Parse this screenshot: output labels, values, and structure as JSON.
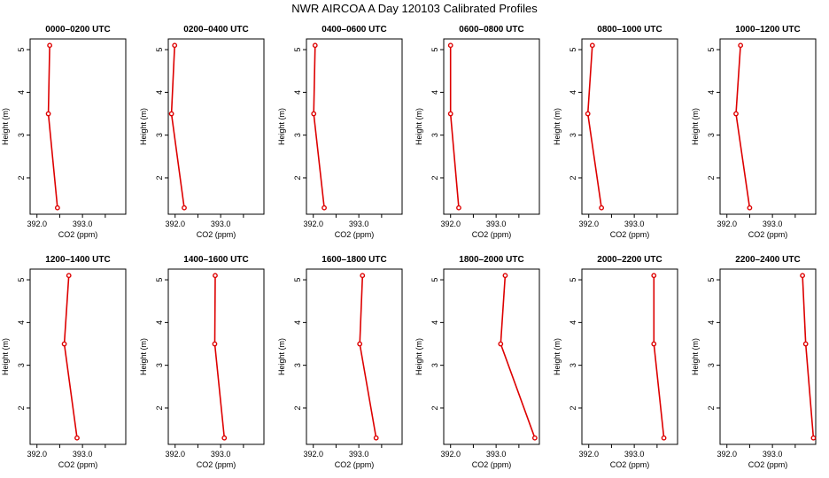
{
  "page": {
    "title": "NWR AIRCOA A  Day 120103  Calibrated Profiles"
  },
  "style": {
    "line_color": "#dd0000",
    "axis_color": "#000000"
  },
  "chart_data": [
    {
      "type": "line",
      "title": "0000–0200 UTC",
      "xlabel": "CO2 (ppm)",
      "ylabel": "Height (m)",
      "xlim": [
        391.85,
        393.95
      ],
      "ylim": [
        1.15,
        5.25
      ],
      "xticks": [
        392.0,
        392.5,
        393.0,
        393.5
      ],
      "xticklabels": [
        "392.0",
        "",
        "393.0",
        ""
      ],
      "yticks": [
        2,
        3,
        4,
        5
      ],
      "yticklabels": [
        "2",
        "3",
        "4",
        "5"
      ],
      "series": [
        {
          "x": [
            392.45,
            392.25,
            392.28
          ],
          "y": [
            1.3,
            3.5,
            5.1
          ]
        }
      ]
    },
    {
      "type": "line",
      "title": "0200–0400 UTC",
      "xlabel": "CO2 (ppm)",
      "ylabel": "Height (m)",
      "xlim": [
        391.85,
        393.95
      ],
      "ylim": [
        1.15,
        5.25
      ],
      "xticks": [
        392.0,
        392.5,
        393.0,
        393.5
      ],
      "xticklabels": [
        "392.0",
        "",
        "393.0",
        ""
      ],
      "yticks": [
        2,
        3,
        4,
        5
      ],
      "yticklabels": [
        "2",
        "3",
        "4",
        "5"
      ],
      "series": [
        {
          "x": [
            392.2,
            391.92,
            391.99
          ],
          "y": [
            1.3,
            3.5,
            5.1
          ]
        }
      ]
    },
    {
      "type": "line",
      "title": "0400–0600 UTC",
      "xlabel": "CO2 (ppm)",
      "ylabel": "Height (m)",
      "xlim": [
        391.85,
        393.95
      ],
      "ylim": [
        1.15,
        5.25
      ],
      "xticks": [
        392.0,
        392.5,
        393.0,
        393.5
      ],
      "xticklabels": [
        "392.0",
        "",
        "393.0",
        ""
      ],
      "yticks": [
        2,
        3,
        4,
        5
      ],
      "yticklabels": [
        "2",
        "3",
        "4",
        "5"
      ],
      "series": [
        {
          "x": [
            392.24,
            392.01,
            392.04
          ],
          "y": [
            1.3,
            3.5,
            5.1
          ]
        }
      ]
    },
    {
      "type": "line",
      "title": "0600–0800 UTC",
      "xlabel": "CO2 (ppm)",
      "ylabel": "Height (m)",
      "xlim": [
        391.85,
        393.95
      ],
      "ylim": [
        1.15,
        5.25
      ],
      "xticks": [
        392.0,
        392.5,
        393.0,
        393.5
      ],
      "xticklabels": [
        "392.0",
        "",
        "393.0",
        ""
      ],
      "yticks": [
        2,
        3,
        4,
        5
      ],
      "yticklabels": [
        "2",
        "3",
        "4",
        "5"
      ],
      "series": [
        {
          "x": [
            392.18,
            392.0,
            392.0
          ],
          "y": [
            1.3,
            3.5,
            5.1
          ]
        }
      ]
    },
    {
      "type": "line",
      "title": "0800–1000 UTC",
      "xlabel": "CO2 (ppm)",
      "ylabel": "Height (m)",
      "xlim": [
        391.85,
        393.95
      ],
      "ylim": [
        1.15,
        5.25
      ],
      "xticks": [
        392.0,
        392.5,
        393.0,
        393.5
      ],
      "xticklabels": [
        "392.0",
        "",
        "393.0",
        ""
      ],
      "yticks": [
        2,
        3,
        4,
        5
      ],
      "yticklabels": [
        "2",
        "3",
        "4",
        "5"
      ],
      "series": [
        {
          "x": [
            392.28,
            391.98,
            392.08
          ],
          "y": [
            1.3,
            3.5,
            5.1
          ]
        }
      ]
    },
    {
      "type": "line",
      "title": "1000–1200 UTC",
      "xlabel": "CO2 (ppm)",
      "ylabel": "Height (m)",
      "xlim": [
        391.85,
        393.95
      ],
      "ylim": [
        1.15,
        5.25
      ],
      "xticks": [
        392.0,
        392.5,
        393.0,
        393.5
      ],
      "xticklabels": [
        "392.0",
        "",
        "393.0",
        ""
      ],
      "yticks": [
        2,
        3,
        4,
        5
      ],
      "yticklabels": [
        "2",
        "3",
        "4",
        "5"
      ],
      "series": [
        {
          "x": [
            392.5,
            392.2,
            392.3
          ],
          "y": [
            1.3,
            3.5,
            5.1
          ]
        }
      ]
    },
    {
      "type": "line",
      "title": "1200–1400 UTC",
      "xlabel": "CO2 (ppm)",
      "ylabel": "Height (m)",
      "xlim": [
        391.85,
        393.95
      ],
      "ylim": [
        1.15,
        5.25
      ],
      "xticks": [
        392.0,
        392.5,
        393.0,
        393.5
      ],
      "xticklabels": [
        "392.0",
        "",
        "393.0",
        ""
      ],
      "yticks": [
        2,
        3,
        4,
        5
      ],
      "yticklabels": [
        "2",
        "3",
        "4",
        "5"
      ],
      "series": [
        {
          "x": [
            392.88,
            392.6,
            392.7
          ],
          "y": [
            1.3,
            3.5,
            5.1
          ]
        }
      ]
    },
    {
      "type": "line",
      "title": "1400–1600 UTC",
      "xlabel": "CO2 (ppm)",
      "ylabel": "Height (m)",
      "xlim": [
        391.85,
        393.95
      ],
      "ylim": [
        1.15,
        5.25
      ],
      "xticks": [
        392.0,
        392.5,
        393.0,
        393.5
      ],
      "xticklabels": [
        "392.0",
        "",
        "393.0",
        ""
      ],
      "yticks": [
        2,
        3,
        4,
        5
      ],
      "yticklabels": [
        "2",
        "3",
        "4",
        "5"
      ],
      "series": [
        {
          "x": [
            393.08,
            392.87,
            392.88
          ],
          "y": [
            1.3,
            3.5,
            5.1
          ]
        }
      ]
    },
    {
      "type": "line",
      "title": "1600–1800 UTC",
      "xlabel": "CO2 (ppm)",
      "ylabel": "Height (m)",
      "xlim": [
        391.85,
        393.95
      ],
      "ylim": [
        1.15,
        5.25
      ],
      "xticks": [
        392.0,
        392.5,
        393.0,
        393.5
      ],
      "xticklabels": [
        "392.0",
        "",
        "393.0",
        ""
      ],
      "yticks": [
        2,
        3,
        4,
        5
      ],
      "yticklabels": [
        "2",
        "3",
        "4",
        "5"
      ],
      "series": [
        {
          "x": [
            393.38,
            393.02,
            393.08
          ],
          "y": [
            1.3,
            3.5,
            5.1
          ]
        }
      ]
    },
    {
      "type": "line",
      "title": "1800–2000 UTC",
      "xlabel": "CO2 (ppm)",
      "ylabel": "Height (m)",
      "xlim": [
        391.85,
        393.95
      ],
      "ylim": [
        1.15,
        5.25
      ],
      "xticks": [
        392.0,
        392.5,
        393.0,
        393.5
      ],
      "xticklabels": [
        "392.0",
        "",
        "393.0",
        ""
      ],
      "yticks": [
        2,
        3,
        4,
        5
      ],
      "yticklabels": [
        "2",
        "3",
        "4",
        "5"
      ],
      "series": [
        {
          "x": [
            393.85,
            393.1,
            393.2
          ],
          "y": [
            1.3,
            3.5,
            5.1
          ]
        }
      ]
    },
    {
      "type": "line",
      "title": "2000–2200 UTC",
      "xlabel": "CO2 (ppm)",
      "ylabel": "Height (m)",
      "xlim": [
        391.85,
        393.95
      ],
      "ylim": [
        1.15,
        5.25
      ],
      "xticks": [
        392.0,
        392.5,
        393.0,
        393.5
      ],
      "xticklabels": [
        "392.0",
        "",
        "393.0",
        ""
      ],
      "yticks": [
        2,
        3,
        4,
        5
      ],
      "yticklabels": [
        "2",
        "3",
        "4",
        "5"
      ],
      "series": [
        {
          "x": [
            393.65,
            393.43,
            393.43
          ],
          "y": [
            1.3,
            3.5,
            5.1
          ]
        }
      ]
    },
    {
      "type": "line",
      "title": "2200–2400 UTC",
      "xlabel": "CO2 (ppm)",
      "ylabel": "Height (m)",
      "xlim": [
        391.85,
        393.95
      ],
      "ylim": [
        1.15,
        5.25
      ],
      "xticks": [
        392.0,
        392.5,
        393.0,
        393.5
      ],
      "xticklabels": [
        "392.0",
        "",
        "393.0",
        ""
      ],
      "yticks": [
        2,
        3,
        4,
        5
      ],
      "yticklabels": [
        "2",
        "3",
        "4",
        "5"
      ],
      "series": [
        {
          "x": [
            393.9,
            393.73,
            393.66
          ],
          "y": [
            1.3,
            3.5,
            5.1
          ]
        }
      ]
    }
  ]
}
